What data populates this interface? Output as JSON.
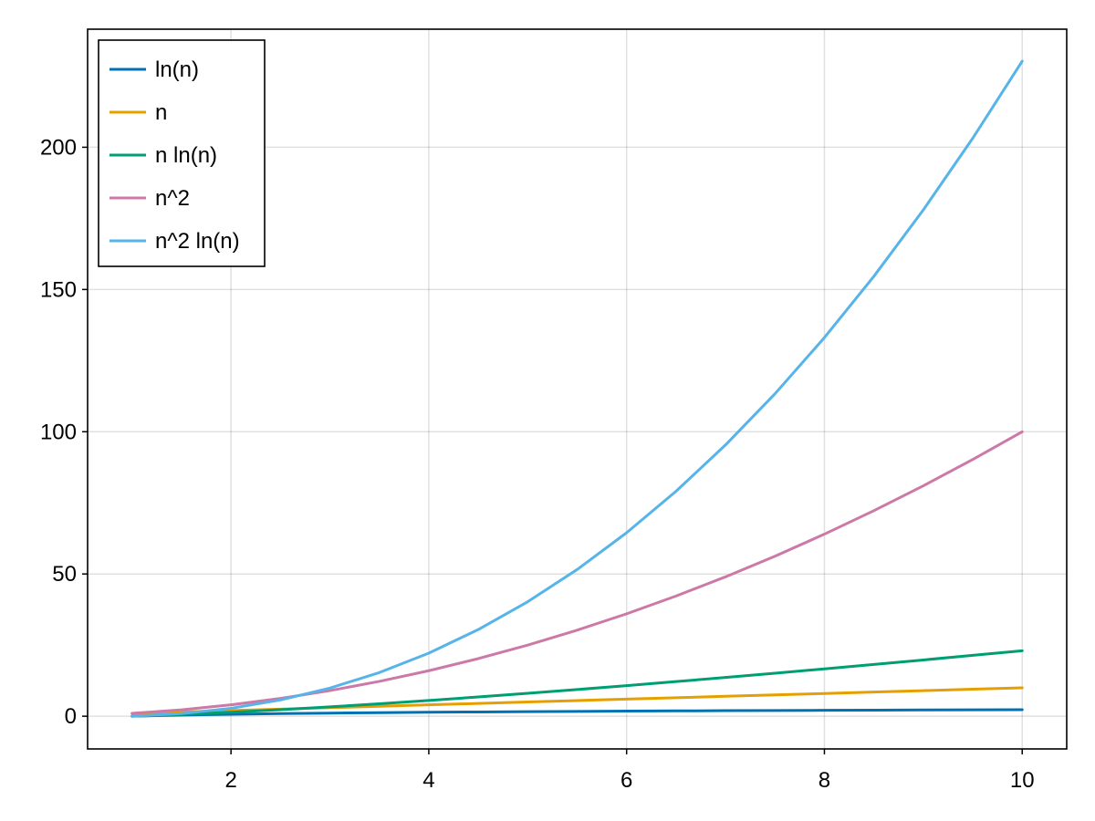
{
  "chart_data": {
    "type": "line",
    "title": "",
    "xlabel": "",
    "ylabel": "",
    "xlim": [
      0.55,
      10.45
    ],
    "ylim": [
      -11.5,
      241.5
    ],
    "x_ticks": [
      2,
      4,
      6,
      8,
      10
    ],
    "y_ticks": [
      0,
      50,
      100,
      150,
      200
    ],
    "x_tick_labels": [
      "2",
      "4",
      "6",
      "8",
      "10"
    ],
    "y_tick_labels": [
      "0",
      "50",
      "100",
      "150",
      "200"
    ],
    "grid": true,
    "legend_position": "top-left",
    "x": [
      1,
      1.5,
      2,
      2.5,
      3,
      3.5,
      4,
      4.5,
      5,
      5.5,
      6,
      6.5,
      7,
      7.5,
      8,
      8.5,
      9,
      9.5,
      10
    ],
    "series": [
      {
        "name": "ln(n)",
        "color": "#0072b2",
        "values": [
          0,
          0.41,
          0.69,
          0.92,
          1.1,
          1.25,
          1.39,
          1.5,
          1.61,
          1.7,
          1.79,
          1.87,
          1.95,
          2.01,
          2.08,
          2.14,
          2.2,
          2.25,
          2.3
        ]
      },
      {
        "name": "n",
        "color": "#e69f00",
        "values": [
          1,
          1.5,
          2,
          2.5,
          3,
          3.5,
          4,
          4.5,
          5,
          5.5,
          6,
          6.5,
          7,
          7.5,
          8,
          8.5,
          9,
          9.5,
          10
        ]
      },
      {
        "name": "n ln(n)",
        "color": "#009e73",
        "values": [
          0,
          0.61,
          1.39,
          2.29,
          3.3,
          4.38,
          5.55,
          6.77,
          8.05,
          9.38,
          10.75,
          12.17,
          13.62,
          15.11,
          16.64,
          18.19,
          19.78,
          21.39,
          23.03
        ]
      },
      {
        "name": "n^2",
        "color": "#cc79a7",
        "values": [
          1,
          2.25,
          4,
          6.25,
          9,
          12.25,
          16,
          20.25,
          25,
          30.25,
          36,
          42.25,
          49,
          56.25,
          64,
          72.25,
          81,
          90.25,
          100
        ]
      },
      {
        "name": "n^2 ln(n)",
        "color": "#56b4e9",
        "values": [
          0,
          0.91,
          2.77,
          5.73,
          9.89,
          15.35,
          22.18,
          30.46,
          40.24,
          51.57,
          64.5,
          79.08,
          95.35,
          113.34,
          133.08,
          154.62,
          177.98,
          203.18,
          230.26
        ]
      }
    ]
  }
}
